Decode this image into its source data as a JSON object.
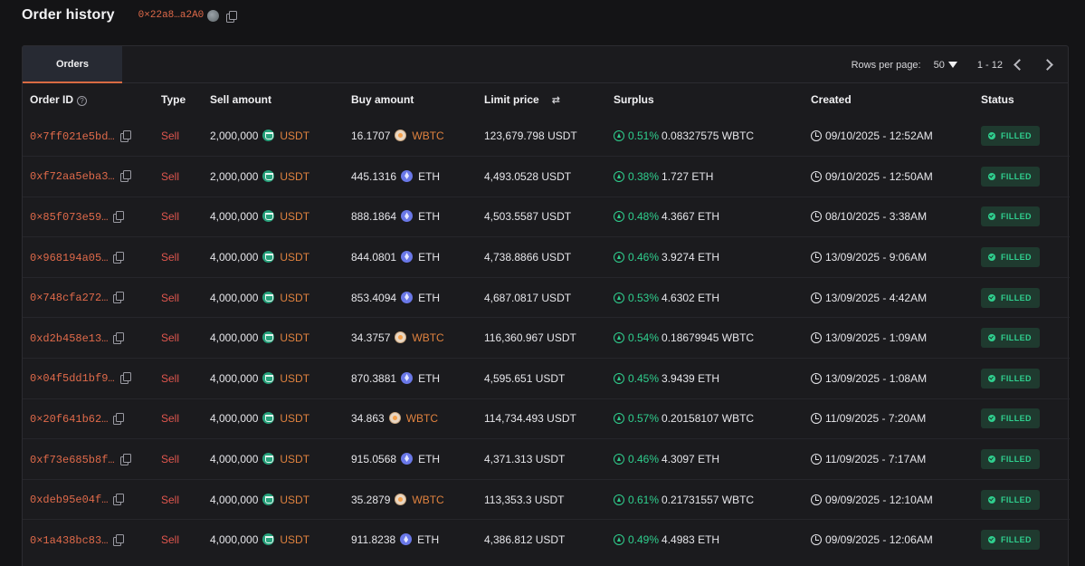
{
  "header": {
    "title": "Order history",
    "address": "0×22a8…a2A0"
  },
  "tabs": [
    {
      "label": "Orders",
      "active": true
    }
  ],
  "pagination": {
    "rows_label": "Rows per page:",
    "rows_value": "50",
    "range": "1 - 12"
  },
  "columns": {
    "order_id": "Order ID",
    "type": "Type",
    "sell_amount": "Sell amount",
    "buy_amount": "Buy amount",
    "limit_price": "Limit price",
    "surplus": "Surplus",
    "created": "Created",
    "status": "Status"
  },
  "colors": {
    "accent": "#e06a4a",
    "sell": "#e0564e",
    "success": "#2fcf8e",
    "background": "#141416"
  },
  "icons": [
    "copy-icon",
    "help-icon",
    "swap-icon",
    "arrow-up-circle-icon",
    "clock-icon",
    "check-circle-icon",
    "chevron-down-icon",
    "chevron-left-icon",
    "chevron-right-icon",
    "usdt-token-icon",
    "eth-token-icon",
    "wbtc-token-icon"
  ],
  "orders": [
    {
      "id": "0×7ff021e5bd…",
      "type": "Sell",
      "sell_amount": "2,000,000",
      "sell_token": "USDT",
      "buy_amount": "16.1707",
      "buy_token": "WBTC",
      "limit_price": "123,679.798 USDT",
      "surplus_pct": "0.51%",
      "surplus_amount": "0.08327575 WBTC",
      "created": "09/10/2025 - 12:52AM",
      "status": "FILLED"
    },
    {
      "id": "0xf72aa5eba3…",
      "type": "Sell",
      "sell_amount": "2,000,000",
      "sell_token": "USDT",
      "buy_amount": "445.1316",
      "buy_token": "ETH",
      "limit_price": "4,493.0528 USDT",
      "surplus_pct": "0.38%",
      "surplus_amount": "1.727 ETH",
      "created": "09/10/2025 - 12:50AM",
      "status": "FILLED"
    },
    {
      "id": "0×85f073e59…",
      "type": "Sell",
      "sell_amount": "4,000,000",
      "sell_token": "USDT",
      "buy_amount": "888.1864",
      "buy_token": "ETH",
      "limit_price": "4,503.5587 USDT",
      "surplus_pct": "0.48%",
      "surplus_amount": "4.3667 ETH",
      "created": "08/10/2025 - 3:38AM",
      "status": "FILLED"
    },
    {
      "id": "0×968194a05…",
      "type": "Sell",
      "sell_amount": "4,000,000",
      "sell_token": "USDT",
      "buy_amount": "844.0801",
      "buy_token": "ETH",
      "limit_price": "4,738.8866 USDT",
      "surplus_pct": "0.46%",
      "surplus_amount": "3.9274 ETH",
      "created": "13/09/2025 - 9:06AM",
      "status": "FILLED"
    },
    {
      "id": "0×748cfa272…",
      "type": "Sell",
      "sell_amount": "4,000,000",
      "sell_token": "USDT",
      "buy_amount": "853.4094",
      "buy_token": "ETH",
      "limit_price": "4,687.0817 USDT",
      "surplus_pct": "0.53%",
      "surplus_amount": "4.6302 ETH",
      "created": "13/09/2025 - 4:42AM",
      "status": "FILLED"
    },
    {
      "id": "0xd2b458e13…",
      "type": "Sell",
      "sell_amount": "4,000,000",
      "sell_token": "USDT",
      "buy_amount": "34.3757",
      "buy_token": "WBTC",
      "limit_price": "116,360.967 USDT",
      "surplus_pct": "0.54%",
      "surplus_amount": "0.18679945 WBTC",
      "created": "13/09/2025 - 1:09AM",
      "status": "FILLED"
    },
    {
      "id": "0×04f5dd1bf9…",
      "type": "Sell",
      "sell_amount": "4,000,000",
      "sell_token": "USDT",
      "buy_amount": "870.3881",
      "buy_token": "ETH",
      "limit_price": "4,595.651 USDT",
      "surplus_pct": "0.45%",
      "surplus_amount": "3.9439 ETH",
      "created": "13/09/2025 - 1:08AM",
      "status": "FILLED"
    },
    {
      "id": "0×20f641b62…",
      "type": "Sell",
      "sell_amount": "4,000,000",
      "sell_token": "USDT",
      "buy_amount": "34.863",
      "buy_token": "WBTC",
      "limit_price": "114,734.493 USDT",
      "surplus_pct": "0.57%",
      "surplus_amount": "0.20158107 WBTC",
      "created": "11/09/2025 - 7:20AM",
      "status": "FILLED"
    },
    {
      "id": "0xf73e685b8f…",
      "type": "Sell",
      "sell_amount": "4,000,000",
      "sell_token": "USDT",
      "buy_amount": "915.0568",
      "buy_token": "ETH",
      "limit_price": "4,371.313 USDT",
      "surplus_pct": "0.46%",
      "surplus_amount": "4.3097 ETH",
      "created": "11/09/2025 - 7:17AM",
      "status": "FILLED"
    },
    {
      "id": "0xdeb95e04f…",
      "type": "Sell",
      "sell_amount": "4,000,000",
      "sell_token": "USDT",
      "buy_amount": "35.2879",
      "buy_token": "WBTC",
      "limit_price": "113,353.3 USDT",
      "surplus_pct": "0.61%",
      "surplus_amount": "0.21731557 WBTC",
      "created": "09/09/2025 - 12:10AM",
      "status": "FILLED"
    },
    {
      "id": "0×1a438bc83…",
      "type": "Sell",
      "sell_amount": "4,000,000",
      "sell_token": "USDT",
      "buy_amount": "911.8238",
      "buy_token": "ETH",
      "limit_price": "4,386.812 USDT",
      "surplus_pct": "0.49%",
      "surplus_amount": "4.4983 ETH",
      "created": "09/09/2025 - 12:06AM",
      "status": "FILLED"
    }
  ]
}
